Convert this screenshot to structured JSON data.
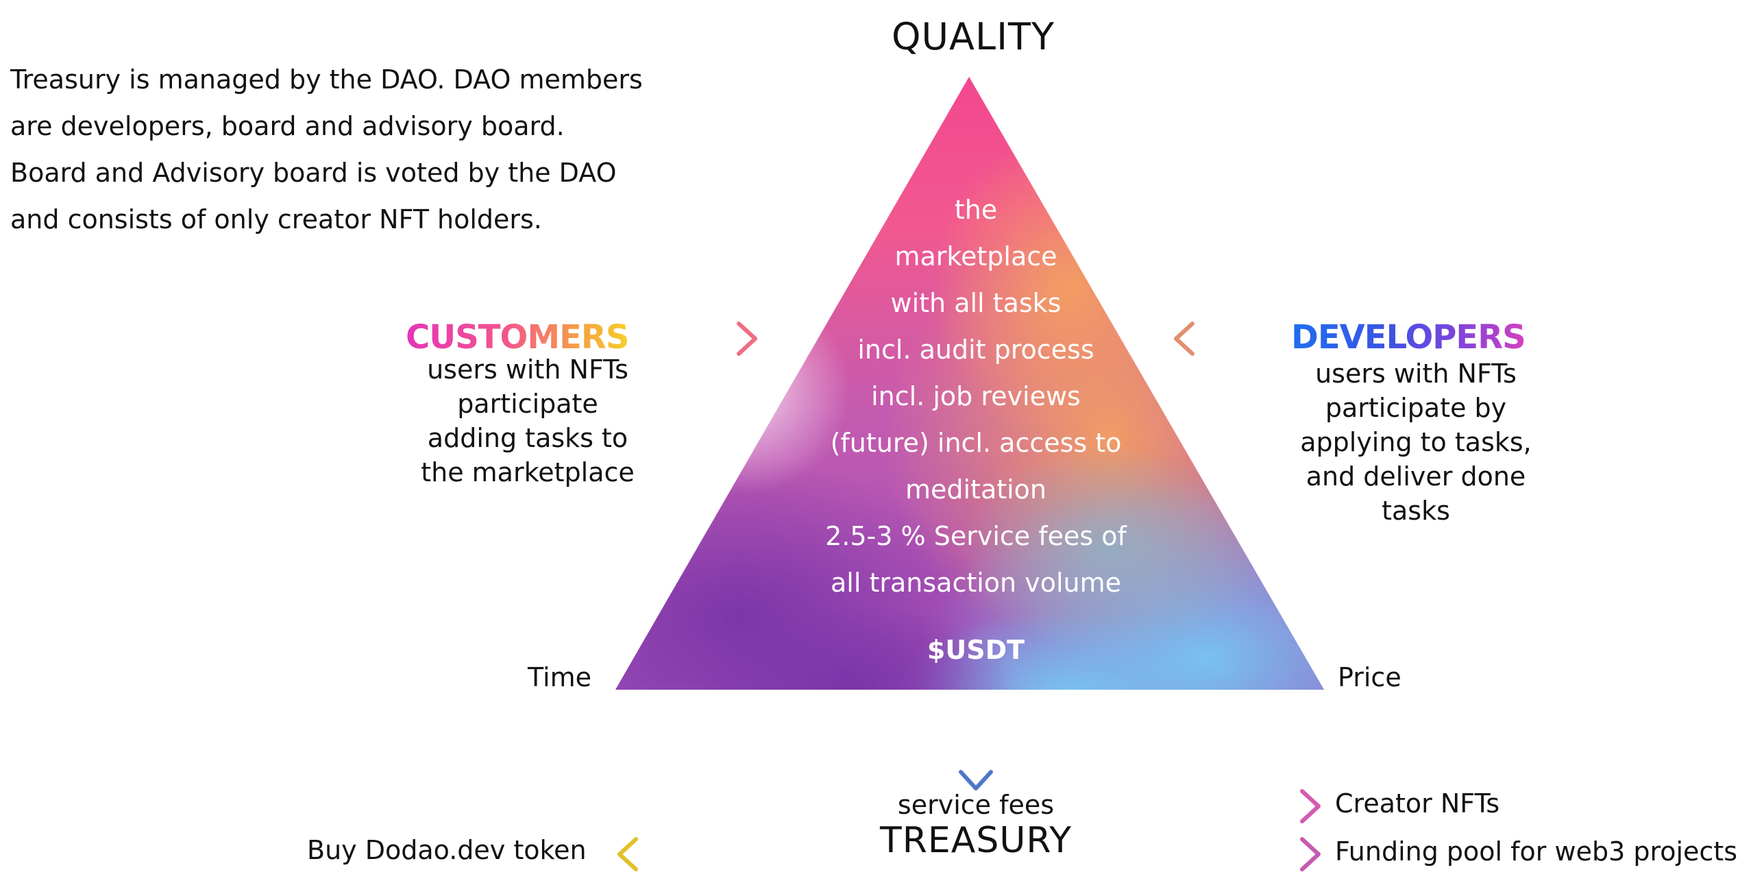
{
  "intro": {
    "lines": [
      "Treasury is managed by the DAO. DAO members",
      "are developers, board and advisory board.",
      "Board and Advisory board is voted by the DAO",
      "and consists of only creator NFT holders."
    ]
  },
  "pyramid": {
    "top_label": "QUALITY",
    "left_label": "Time",
    "right_label": "Price",
    "lines": [
      "the",
      "marketplace",
      "with all tasks",
      "incl. audit process",
      "incl. job reviews",
      "(future) incl. access to",
      "meditation",
      "2.5-3 % Service fees of",
      "all transaction volume"
    ],
    "currency": "$USDT"
  },
  "customers": {
    "title": "CUSTOMERS",
    "lines": [
      "users with NFTs",
      "participate",
      "adding tasks to",
      "the marketplace"
    ]
  },
  "developers": {
    "title": "DEVELOPERS",
    "lines": [
      "users with NFTs",
      "participate by",
      "applying to tasks,",
      "and deliver done",
      "tasks"
    ]
  },
  "treasury": {
    "subtitle": "service fees",
    "title": "TREASURY",
    "buy_token": "Buy Dodao.dev token",
    "creator_nfts": "Creator NFTs",
    "funding_pool": "Funding pool for web3 projects"
  },
  "colors": {
    "pink": "#f2509b",
    "orange": "#f2a064",
    "purple": "#8a3fae",
    "blue": "#6fb7ec",
    "yellow": "#d8c63a"
  }
}
